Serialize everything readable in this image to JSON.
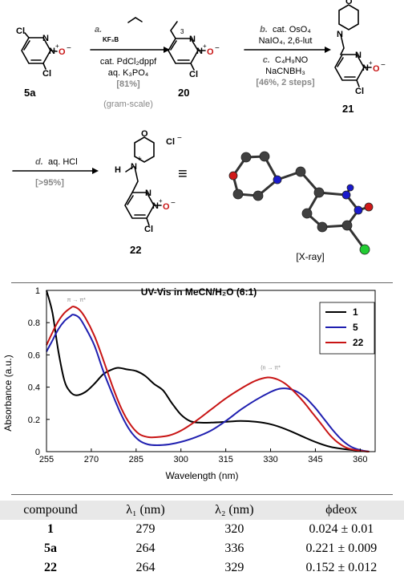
{
  "scheme": {
    "sm_label": "5a",
    "sm_atoms": {
      "cl_top": "Cl",
      "cl_bottom": "Cl",
      "n1": "N",
      "n2": "N",
      "n_plus": "+",
      "o_minus": "O",
      "minus": "−"
    },
    "step_a": {
      "letter": "a.",
      "reagent1": "KF₃B",
      "line1": "cat. PdCl₂dppf",
      "line2": "aq. K₃PO₄",
      "yield": "[81%]",
      "note": "(gram-scale)"
    },
    "int_label": "20",
    "int_position_label": "3",
    "int_atoms": {
      "n1": "N",
      "n2": "N",
      "plus": "+",
      "o": "O",
      "minus": "−",
      "cl": "Cl"
    },
    "step_bc": {
      "b_letter": "b.",
      "b_line1": "cat. OsO₄",
      "b_line2": "NaIO₄, 2,6-lut",
      "c_letter": "c.",
      "c_line1": "C₄H₉NO",
      "c_line2": "NaCNBH₃",
      "yield": "[46%, 2 steps]"
    },
    "p21_label": "21",
    "p21_atoms": {
      "o_ring": "O",
      "n_amine": "N",
      "n1": "N",
      "n2": "N",
      "plus": "+",
      "o": "O",
      "minus": "−",
      "cl": "Cl"
    },
    "step_d": {
      "letter": "d.",
      "line1": "aq. HCl",
      "yield": "[>95%]"
    },
    "p22_label": "22",
    "p22_atoms": {
      "o_ring": "O",
      "h": "H",
      "n_amine": "N",
      "n_plus": "+",
      "cl_ion": "Cl",
      "cl_minus": "−",
      "n1": "N",
      "n2": "N",
      "plus": "+",
      "o": "O",
      "minus": "−",
      "cl": "Cl"
    },
    "equiv_symbol": "≡",
    "xray_label": "[X-ray]"
  },
  "chart_data": {
    "type": "line",
    "title": "UV-Vis in MeCN/H₂O (6:1)",
    "xlabel": "Wavelength (nm)",
    "ylabel": "Absorbance (a.u.)",
    "xlim": [
      255,
      365
    ],
    "ylim": [
      0,
      1
    ],
    "xticks": [
      255,
      270,
      285,
      300,
      315,
      330,
      345,
      360
    ],
    "yticks": [
      0,
      0.2,
      0.4,
      0.6,
      0.8,
      1
    ],
    "ytick_labels": [
      "0",
      "0.2",
      "0.4",
      "0.6",
      "0.8",
      "1"
    ],
    "legend_position": "top-right",
    "annotations": [
      {
        "text": "π → π*",
        "x": 265,
        "y": 0.93
      },
      {
        "text": "(n → π*",
        "x": 330,
        "y": 0.51
      }
    ],
    "series": [
      {
        "name": "1",
        "color": "#000000",
        "x": [
          255,
          257,
          259,
          261,
          263,
          265,
          268,
          271,
          274,
          277,
          279,
          282,
          285,
          288,
          291,
          294,
          297,
          300,
          303,
          306,
          310,
          315,
          320,
          325,
          330,
          335,
          340,
          345,
          350,
          355,
          360,
          363
        ],
        "y": [
          1.0,
          0.86,
          0.62,
          0.44,
          0.37,
          0.35,
          0.37,
          0.42,
          0.48,
          0.51,
          0.52,
          0.51,
          0.5,
          0.47,
          0.42,
          0.38,
          0.3,
          0.23,
          0.19,
          0.18,
          0.18,
          0.185,
          0.19,
          0.185,
          0.17,
          0.14,
          0.1,
          0.06,
          0.03,
          0.015,
          0.005,
          0.0
        ]
      },
      {
        "name": "5",
        "color": "#1f1fb0",
        "x": [
          255,
          257,
          259,
          261,
          263,
          264,
          266,
          268,
          271,
          274,
          277,
          280,
          283,
          286,
          289,
          292,
          296,
          300,
          305,
          310,
          315,
          320,
          325,
          330,
          333,
          336,
          339,
          342,
          345,
          348,
          351,
          354,
          357,
          360,
          363
        ],
        "y": [
          0.62,
          0.69,
          0.76,
          0.81,
          0.84,
          0.85,
          0.83,
          0.77,
          0.66,
          0.5,
          0.36,
          0.23,
          0.13,
          0.07,
          0.045,
          0.04,
          0.045,
          0.06,
          0.09,
          0.13,
          0.19,
          0.26,
          0.32,
          0.37,
          0.39,
          0.39,
          0.37,
          0.33,
          0.27,
          0.2,
          0.13,
          0.07,
          0.03,
          0.01,
          0.0
        ]
      },
      {
        "name": "22",
        "color": "#c81414",
        "x": [
          255,
          257,
          259,
          261,
          263,
          264,
          266,
          268,
          271,
          274,
          277,
          280,
          283,
          286,
          289,
          292,
          296,
          300,
          305,
          310,
          315,
          320,
          325,
          329,
          332,
          335,
          338,
          341,
          344,
          347,
          350,
          353,
          356,
          360,
          363
        ],
        "y": [
          0.66,
          0.74,
          0.81,
          0.86,
          0.89,
          0.9,
          0.88,
          0.83,
          0.72,
          0.57,
          0.41,
          0.27,
          0.17,
          0.11,
          0.09,
          0.09,
          0.1,
          0.13,
          0.19,
          0.26,
          0.33,
          0.39,
          0.44,
          0.46,
          0.45,
          0.42,
          0.37,
          0.31,
          0.24,
          0.17,
          0.1,
          0.05,
          0.02,
          0.005,
          0.0
        ]
      }
    ]
  },
  "table": {
    "headers": [
      "compound",
      "λ₁ (nm)",
      "λ₂ (nm)",
      "ϕdeox"
    ],
    "rows": [
      [
        "1",
        "279",
        "320",
        "0.024 ± 0.01"
      ],
      [
        "5a",
        "264",
        "336",
        "0.221 ± 0.009"
      ],
      [
        "22",
        "264",
        "329",
        "0.152 ± 0.012"
      ]
    ]
  }
}
